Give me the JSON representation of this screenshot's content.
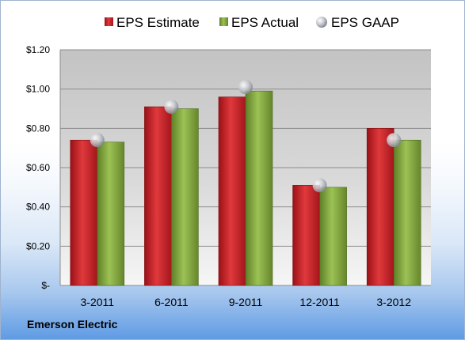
{
  "company": "Emerson Electric",
  "colors": {
    "estimate": "#cc1f25",
    "actual": "#86ab3d",
    "gaap": "#c9ccd2"
  },
  "chart_data": {
    "type": "bar",
    "categories": [
      "3-2011",
      "6-2011",
      "9-2011",
      "12-2011",
      "3-2012"
    ],
    "series": [
      {
        "name": "EPS Estimate",
        "type": "bar",
        "values": [
          0.74,
          0.91,
          0.96,
          0.51,
          0.8
        ]
      },
      {
        "name": "EPS Actual",
        "type": "bar",
        "values": [
          0.73,
          0.9,
          0.99,
          0.5,
          0.74
        ]
      },
      {
        "name": "EPS GAAP",
        "type": "marker",
        "values": [
          0.74,
          0.91,
          1.01,
          0.51,
          0.74
        ]
      }
    ],
    "ylim": [
      0,
      1.2
    ],
    "yticks": [
      0,
      0.2,
      0.4,
      0.6,
      0.8,
      1.0,
      1.2
    ],
    "ytick_labels": [
      "$-",
      "$0.20",
      "$0.40",
      "$0.60",
      "$0.80",
      "$1.00",
      "$1.20"
    ],
    "grid": true,
    "legend_position": "top"
  }
}
